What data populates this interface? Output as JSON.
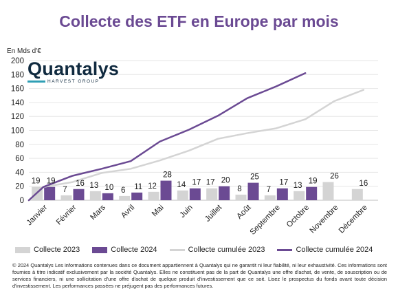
{
  "legend_items": {
    "bar_2023": "Collecte 2023",
    "bar_2024": "Collecte 2024",
    "cum_2023": "Collecte cumulée 2023",
    "cum_2024": "Collecte cumulée 2024"
  },
  "logo": {
    "name": "Quantalys",
    "tagline": "HARVEST GROUP"
  },
  "disclaimer": "© 2024 Quantalys Les informations contenues dans ce document appartiennent à Quantalys qui ne garantit ni leur fiabilité, ni leur exhaustivité. Ces informations sont fournies à titre indicatif exclusivement par la société Quantalys. Elles ne constituent pas de la part de Quantalys une offre d'achat, de vente, de souscription ou de services financiers, ni une sollicitation d'une offre d'achat de quelque produit d'investissement que ce soit. Lisez le prospectus du fonds avant toute décision d'investissement. Les performances passées ne préjugent pas des performances futures.",
  "colors": {
    "title": "#6b4a93",
    "bar_2023": "#d4d4d4",
    "bar_2024": "#6b4a93",
    "cum_2023": "#d4d4d4",
    "cum_2024": "#6b4a93"
  },
  "chart_data": {
    "type": "bar",
    "title": "Collecte des ETF en Europe par mois",
    "ylabel": "En Mds d'€",
    "xlabel": "",
    "ylim": [
      0,
      200
    ],
    "yticks": [
      0,
      20,
      40,
      60,
      80,
      100,
      120,
      140,
      160,
      180,
      200
    ],
    "grid": true,
    "legend_position": "bottom",
    "categories": [
      "Janvier",
      "Février",
      "Mars",
      "Avril",
      "Mai",
      "Juin",
      "Juillet",
      "Août",
      "Septembre",
      "Octobre",
      "Novembre",
      "Décembre"
    ],
    "series": [
      {
        "name": "Collecte 2023",
        "kind": "bar",
        "values": [
          19,
          7,
          13,
          6,
          12,
          14,
          17,
          8,
          7,
          13,
          26,
          16
        ]
      },
      {
        "name": "Collecte 2024",
        "kind": "bar",
        "values": [
          19,
          16,
          10,
          11,
          28,
          17,
          20,
          25,
          17,
          19,
          null,
          null
        ]
      },
      {
        "name": "Collecte cumulée 2023",
        "kind": "line",
        "values": [
          19,
          26,
          39,
          45,
          57,
          71,
          88,
          96,
          103,
          116,
          142,
          158
        ]
      },
      {
        "name": "Collecte cumulée 2024",
        "kind": "line",
        "values": [
          19,
          35,
          45,
          56,
          84,
          101,
          121,
          146,
          163,
          182,
          null,
          null
        ]
      }
    ]
  }
}
